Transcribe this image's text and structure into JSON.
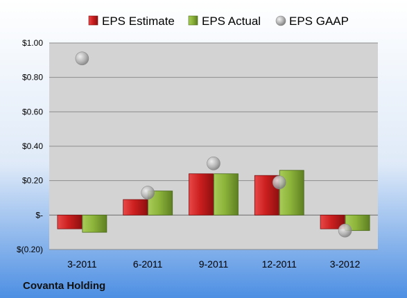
{
  "company": "Covanta Holding",
  "colors": {
    "estimate": "#cc1f1f",
    "actual": "#8cb33a",
    "gaap": "#a8a8a8",
    "plot_bg": "#d3d3d3",
    "bg_top": "#ffffff",
    "bg_bottom": "#4d8fe3"
  },
  "chart_data": {
    "type": "bar",
    "categories": [
      "3-2011",
      "6-2011",
      "9-2011",
      "12-2011",
      "3-2012"
    ],
    "series": [
      {
        "name": "EPS Estimate",
        "kind": "bar",
        "values": [
          -0.08,
          0.09,
          0.24,
          0.23,
          -0.08
        ]
      },
      {
        "name": "EPS Actual",
        "kind": "bar",
        "values": [
          -0.1,
          0.14,
          0.24,
          0.26,
          -0.09
        ]
      },
      {
        "name": "EPS GAAP",
        "kind": "marker",
        "values": [
          0.91,
          0.13,
          0.3,
          0.19,
          -0.09
        ]
      }
    ],
    "ylim": [
      -0.2,
      1.0
    ],
    "yticks": [
      -0.2,
      0.0,
      0.2,
      0.4,
      0.6,
      0.8,
      1.0
    ],
    "ytick_labels": [
      "$(0.20)",
      "$-",
      "$0.20",
      "$0.40",
      "$0.60",
      "$0.80",
      "$1.00"
    ],
    "grid": true,
    "legend": "top"
  }
}
